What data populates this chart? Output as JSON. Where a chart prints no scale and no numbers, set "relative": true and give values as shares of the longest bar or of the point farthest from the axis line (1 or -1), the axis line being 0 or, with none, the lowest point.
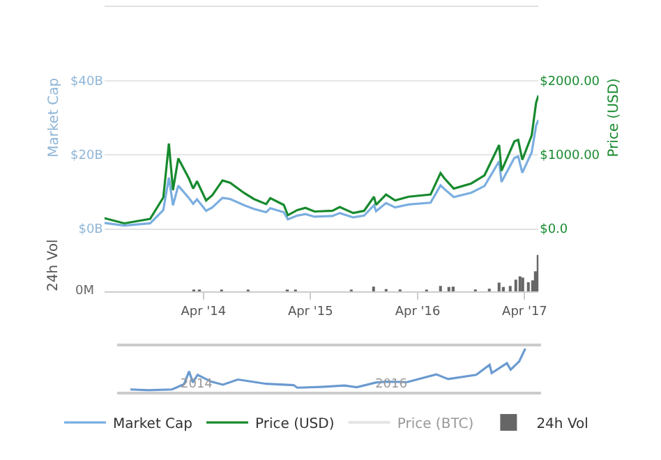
{
  "chart_data": [
    {
      "type": "line",
      "x": [
        "2013-04-28",
        "2013-07-05",
        "2013-10-01",
        "2013-11-15",
        "2013-12-04",
        "2013-12-18",
        "2014-01-05",
        "2014-02-10",
        "2014-02-25",
        "2014-03-10",
        "2014-04-10",
        "2014-05-01",
        "2014-06-05",
        "2014-07-01",
        "2014-08-18",
        "2014-09-20",
        "2014-11-01",
        "2014-11-15",
        "2014-12-31",
        "2015-01-14",
        "2015-02-15",
        "2015-03-15",
        "2015-04-15",
        "2015-06-15",
        "2015-07-10",
        "2015-08-25",
        "2015-10-01",
        "2015-11-04",
        "2015-11-11",
        "2015-12-15",
        "2016-01-15",
        "2016-03-01",
        "2016-05-15",
        "2016-06-18",
        "2016-07-01",
        "2016-08-02",
        "2016-10-01",
        "2016-11-15",
        "2017-01-04",
        "2017-01-12",
        "2017-02-25",
        "2017-03-10",
        "2017-03-24",
        "2017-04-25",
        "2017-05-10",
        "2017-05-18"
      ],
      "series": [
        {
          "name": "Market Cap",
          "color": "#7aaee0",
          "values": [
            1.5,
            0.8,
            1.4,
            5.0,
            13.8,
            6.3,
            11.6,
            8.3,
            6.7,
            7.9,
            4.8,
            5.7,
            8.3,
            8.0,
            6.3,
            5.3,
            4.4,
            5.5,
            4.4,
            2.5,
            3.5,
            3.9,
            3.2,
            3.4,
            4.2,
            3.0,
            3.5,
            6.3,
            4.7,
            6.9,
            5.7,
            6.5,
            7.0,
            11.7,
            10.7,
            8.5,
            9.7,
            11.5,
            18.2,
            12.6,
            19.1,
            19.5,
            15.1,
            20.6,
            27.8,
            29.4
          ]
        },
        {
          "name": "Price (USD)",
          "color": "#178a2e",
          "axis": "y2",
          "values": [
            140,
            70,
            130,
            420,
            1150,
            520,
            950,
            680,
            540,
            640,
            380,
            450,
            650,
            620,
            480,
            400,
            330,
            410,
            320,
            180,
            250,
            280,
            230,
            240,
            290,
            210,
            240,
            430,
            320,
            460,
            380,
            430,
            460,
            750,
            680,
            540,
            610,
            720,
            1130,
            780,
            1180,
            1200,
            930,
            1260,
            1700,
            1800
          ]
        },
        {
          "name": "Price (BTC)",
          "color": "#cccccc",
          "values": [
            null,
            null,
            null,
            null,
            null,
            null,
            null,
            null,
            null,
            null,
            null,
            null,
            null,
            null,
            null,
            null,
            null,
            null,
            null,
            null,
            null,
            null,
            null,
            null,
            null,
            null,
            null,
            null,
            null,
            null,
            null,
            null,
            null,
            null,
            null,
            null,
            null,
            null,
            null,
            null,
            null,
            null,
            null,
            null,
            null,
            null
          ]
        }
      ],
      "ylabel": "Market Cap",
      "y2label": "Price (USD)",
      "xlim": [
        "2013-04-28",
        "2017-05-18"
      ],
      "ylim": [
        0,
        60
      ],
      "yticks": [
        {
          "value": 0,
          "label": "$0B"
        },
        {
          "value": 20,
          "label": "$20B"
        },
        {
          "value": 40,
          "label": "$40B"
        }
      ],
      "y2lim": [
        0,
        3000
      ],
      "y2ticks": [
        {
          "value": 0,
          "label": "$0.0"
        },
        {
          "value": 1000,
          "label": "$1000.00"
        },
        {
          "value": 2000,
          "label": "$2000.00"
        }
      ],
      "grid": "y",
      "legend": "bottom",
      "tick_labels": "y"
    },
    {
      "type": "bar",
      "relative": true,
      "ylabel": "24h Vol",
      "series": [
        {
          "name": "24h Vol",
          "color": "#666666",
          "x": [
            "2014-03-01",
            "2014-03-20",
            "2014-06-01",
            "2014-09-01",
            "2015-01-14",
            "2015-02-10",
            "2015-08-20",
            "2015-11-04",
            "2015-12-15",
            "2016-02-01",
            "2016-05-01",
            "2016-06-18",
            "2016-07-15",
            "2016-08-02",
            "2016-10-15",
            "2016-12-01",
            "2017-01-05",
            "2017-01-20",
            "2017-02-10",
            "2017-03-01",
            "2017-03-15",
            "2017-03-25",
            "2017-04-15",
            "2017-05-01",
            "2017-05-10",
            "2017-05-17"
          ],
          "values": [
            0.03,
            0.04,
            0.02,
            0.02,
            0.04,
            0.03,
            0.03,
            0.13,
            0.06,
            0.05,
            0.04,
            0.15,
            0.12,
            0.13,
            0.05,
            0.07,
            0.24,
            0.12,
            0.15,
            0.32,
            0.41,
            0.38,
            0.25,
            0.3,
            0.55,
            1
          ]
        }
      ],
      "xlim": [
        "2013-04-28",
        "2017-05-18"
      ],
      "xticks": [
        {
          "value": "2014-04-01",
          "label": "Apr '14"
        },
        {
          "value": "2015-04-01",
          "label": "Apr '15"
        },
        {
          "value": "2016-04-01",
          "label": "Apr '16"
        },
        {
          "value": "2017-04-01",
          "label": "Apr '17"
        }
      ],
      "annotations": [
        "0M"
      ]
    },
    {
      "type": "line",
      "relative": true,
      "color": "#6a9ad0",
      "x": [
        "2013-04-28",
        "2013-07-05",
        "2013-10-01",
        "2013-11-15",
        "2013-12-04",
        "2013-12-18",
        "2014-01-05",
        "2014-02-25",
        "2014-04-10",
        "2014-06-05",
        "2014-09-20",
        "2014-12-31",
        "2015-01-14",
        "2015-04-15",
        "2015-07-10",
        "2015-08-25",
        "2015-11-04",
        "2015-12-15",
        "2016-03-01",
        "2016-06-18",
        "2016-08-02",
        "2016-11-15",
        "2017-01-04",
        "2017-01-12",
        "2017-03-10",
        "2017-03-24",
        "2017-04-25",
        "2017-05-18"
      ],
      "values": [
        0.05,
        0.03,
        0.05,
        0.17,
        0.47,
        0.21,
        0.39,
        0.23,
        0.16,
        0.28,
        0.18,
        0.15,
        0.09,
        0.11,
        0.14,
        0.1,
        0.21,
        0.23,
        0.22,
        0.4,
        0.29,
        0.39,
        0.62,
        0.43,
        0.66,
        0.51,
        0.7,
        1
      ],
      "xlim": [
        "2013-03-08",
        "2017-07-16"
      ],
      "xticks": [
        {
          "value": "2014-01-01",
          "label": "2014"
        },
        {
          "value": "2016-01-01",
          "label": "2016"
        }
      ],
      "tick_labels": "x"
    }
  ]
}
